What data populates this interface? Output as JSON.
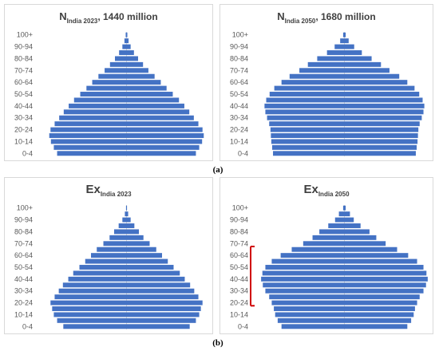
{
  "captions": {
    "top": "(a)",
    "bottom": "(b)"
  },
  "colors": {
    "bar": "#4472C4",
    "bracket": "#D00000",
    "axis": "#bfbfbf"
  },
  "chart_data": [
    {
      "type": "bar",
      "orientation": "horizontal-pyramid",
      "title": {
        "main": "N",
        "sub": "India 2023",
        "suffix": ", 1440 million"
      },
      "categories": [
        "100+",
        "95-99",
        "90-94",
        "85-89",
        "80-84",
        "75-79",
        "70-74",
        "65-69",
        "60-64",
        "55-59",
        "50-54",
        "45-49",
        "40-44",
        "35-39",
        "30-34",
        "25-29",
        "20-24",
        "15-19",
        "10-14",
        "5-9",
        "0-4"
      ],
      "tick_labels": [
        "100+",
        "90-94",
        "80-84",
        "70-74",
        "60-64",
        "50-54",
        "40-44",
        "30-34",
        "20-24",
        "10-14",
        "0-4"
      ],
      "values": [
        0.2,
        0.5,
        1,
        1.8,
        2.8,
        4,
        5.3,
        6.8,
        8.3,
        9.7,
        11.2,
        12.7,
        14,
        15.2,
        16.3,
        17.4,
        18.4,
        18.7,
        18.3,
        17.6,
        16.8
      ],
      "xlim": [
        0,
        20
      ]
    },
    {
      "type": "bar",
      "orientation": "horizontal-pyramid",
      "title": {
        "main": "N",
        "sub": "India 2050",
        "suffix": ", 1680 million"
      },
      "categories": [
        "100+",
        "95-99",
        "90-94",
        "85-89",
        "80-84",
        "75-79",
        "70-74",
        "65-69",
        "60-64",
        "55-59",
        "50-54",
        "45-49",
        "40-44",
        "35-39",
        "30-34",
        "25-29",
        "20-24",
        "15-19",
        "10-14",
        "5-9",
        "0-4"
      ],
      "tick_labels": [
        "100+",
        "90-94",
        "80-84",
        "70-74",
        "60-64",
        "50-54",
        "40-44",
        "30-34",
        "20-24",
        "10-14",
        "0-4"
      ],
      "values": [
        0.3,
        1,
        2.3,
        4.1,
        6.4,
        8.6,
        10.6,
        12.9,
        14.8,
        16.5,
        17.6,
        18.4,
        18.8,
        18.6,
        18.2,
        17.7,
        17.4,
        17.3,
        17.2,
        17,
        16.8
      ],
      "xlim": [
        0,
        20
      ]
    },
    {
      "type": "bar",
      "orientation": "horizontal-pyramid",
      "title": {
        "main": "Ex",
        "sub": "India 2023",
        "suffix": ""
      },
      "categories": [
        "100+",
        "95-99",
        "90-94",
        "85-89",
        "80-84",
        "75-79",
        "70-74",
        "65-69",
        "60-64",
        "55-59",
        "50-54",
        "45-49",
        "40-44",
        "35-39",
        "30-34",
        "25-29",
        "20-24",
        "15-19",
        "10-14",
        "5-9",
        "0-4"
      ],
      "tick_labels": [
        "100+",
        "90-94",
        "80-84",
        "70-74",
        "60-64",
        "50-54",
        "40-44",
        "30-34",
        "20-24",
        "10-14",
        "0-4"
      ],
      "values": [
        0.1,
        0.4,
        1,
        1.9,
        3,
        4.1,
        5.6,
        7.2,
        8.6,
        10,
        11.4,
        12.9,
        14.1,
        15.4,
        16.4,
        17.4,
        18.4,
        18,
        17.6,
        16.8,
        15.3
      ],
      "xlim": [
        0,
        20
      ]
    },
    {
      "type": "bar",
      "orientation": "horizontal-pyramid",
      "title": {
        "main": "Ex",
        "sub": "India 2050",
        "suffix": ""
      },
      "categories": [
        "100+",
        "95-99",
        "90-94",
        "85-89",
        "80-84",
        "75-79",
        "70-74",
        "65-69",
        "60-64",
        "55-59",
        "50-54",
        "45-49",
        "40-44",
        "35-39",
        "30-34",
        "25-29",
        "20-24",
        "15-19",
        "10-14",
        "5-9",
        "0-4"
      ],
      "tick_labels": [
        "100+",
        "90-94",
        "80-84",
        "70-74",
        "60-64",
        "50-54",
        "40-44",
        "30-34",
        "20-24",
        "10-14",
        "0-4"
      ],
      "values": [
        0.3,
        1.3,
        2.2,
        3.8,
        5.9,
        7.5,
        9.7,
        12.4,
        15,
        17.1,
        18.6,
        19.3,
        19.6,
        19.2,
        18.6,
        17.7,
        17.1,
        16.6,
        16.3,
        15.7,
        14.8
      ],
      "xlim": [
        0,
        20
      ],
      "annotation": {
        "type": "bracket",
        "from": "20-24",
        "to": "65-69"
      }
    }
  ]
}
